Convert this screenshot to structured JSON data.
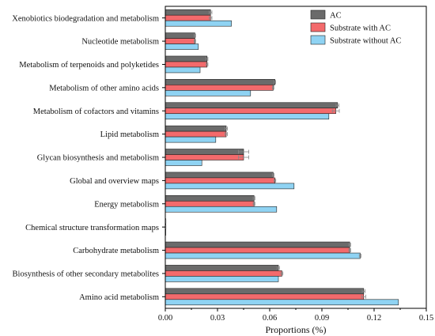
{
  "chart_data": {
    "type": "bar",
    "orientation": "horizontal",
    "title": "",
    "xlabel": "Proportions (%)",
    "ylabel": "",
    "xlim": [
      0,
      0.15
    ],
    "xticks": [
      "0.00",
      "0.03",
      "0.06",
      "0.09",
      "0.12",
      "0.15"
    ],
    "grid": false,
    "legend_position": "top-right",
    "categories": [
      "Xenobiotics biodegradation and metabolism",
      "Nucleotide metabolism",
      "Metabolism of terpenoids and polyketides",
      "Metabolism of other amino acids",
      "Metabolism of cofactors and vitamins",
      "Lipid metabolism",
      "Glycan biosynthesis and metabolism",
      "Global and overview maps",
      "Energy metabolism",
      "Chemical structure transformation maps",
      "Carbohydrate metabolism",
      "Biosynthesis of other secondary metabolites",
      "Amino acid metabolism"
    ],
    "series": [
      {
        "name": "AC",
        "color": "#6b6b6b",
        "values": [
          0.026,
          0.017,
          0.024,
          0.063,
          0.099,
          0.035,
          0.045,
          0.062,
          0.051,
          0.0003,
          0.106,
          0.065,
          0.114
        ],
        "errors": [
          0.0008,
          0.0004,
          0.0005,
          0.0004,
          0.0008,
          0.0007,
          0.003,
          0.0005,
          0.0005,
          5e-05,
          0.0005,
          0.0006,
          0.0008
        ]
      },
      {
        "name": "Substrate with AC",
        "color": "#f36a6c",
        "values": [
          0.026,
          0.017,
          0.024,
          0.062,
          0.098,
          0.035,
          0.045,
          0.063,
          0.051,
          0.0003,
          0.106,
          0.067,
          0.114
        ],
        "errors": [
          0.0008,
          0.0004,
          0.0005,
          0.0004,
          0.002,
          0.0007,
          0.003,
          0.0005,
          0.0005,
          5e-05,
          0.0005,
          0.0006,
          0.0012
        ]
      },
      {
        "name": "Substrate without AC",
        "color": "#8fd3f3",
        "values": [
          0.038,
          0.019,
          0.02,
          0.049,
          0.094,
          0.029,
          0.021,
          0.074,
          0.064,
          0.0002,
          0.112,
          0.065,
          0.134
        ],
        "errors": [
          0,
          0,
          0,
          0,
          0,
          0,
          0,
          0,
          0,
          0,
          0.0005,
          0,
          0
        ]
      }
    ]
  }
}
